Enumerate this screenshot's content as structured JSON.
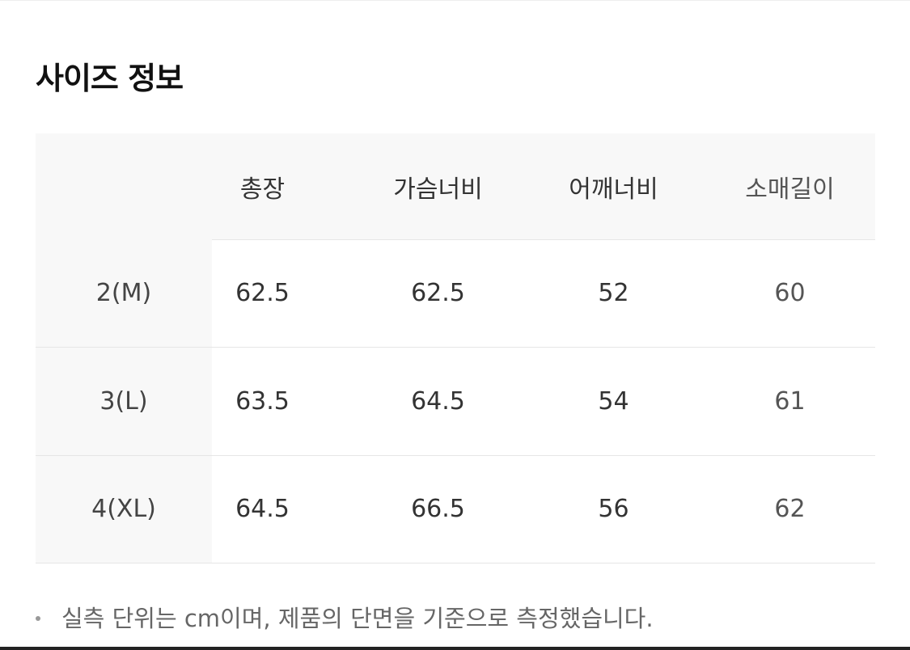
{
  "title": "사이즈 정보",
  "table": {
    "headers": [
      "",
      "총장",
      "가슴너비",
      "어깨너비",
      "소매길이"
    ],
    "rows": [
      [
        "2(M)",
        "62.5",
        "62.5",
        "52",
        "60"
      ],
      [
        "3(L)",
        "63.5",
        "64.5",
        "54",
        "61"
      ],
      [
        "4(XL)",
        "64.5",
        "66.5",
        "56",
        "62"
      ]
    ]
  },
  "note": "실측 단위는 cm이며, 제품의 단면을 기준으로 측정했습니다."
}
